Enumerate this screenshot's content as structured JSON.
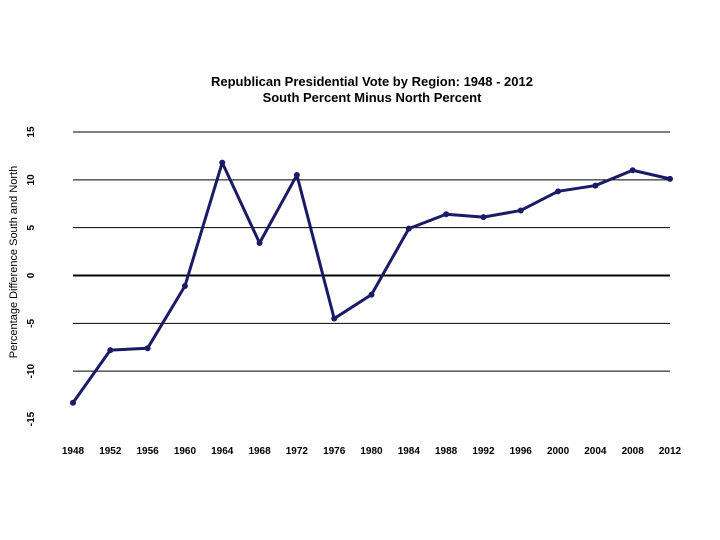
{
  "chart_data": {
    "type": "line",
    "title": "Republican Presidential Vote by Region: 1948 - 2012",
    "subtitle": "South Percent Minus North Percent",
    "xlabel": "",
    "ylabel": "Percentage Difference South and North",
    "x": [
      "1948",
      "1952",
      "1956",
      "1960",
      "1964",
      "1968",
      "1972",
      "1976",
      "1980",
      "1984",
      "1988",
      "1992",
      "1996",
      "2000",
      "2004",
      "2008",
      "2012"
    ],
    "values": [
      -13.3,
      -7.8,
      -7.6,
      -1.1,
      11.8,
      3.4,
      10.5,
      -4.5,
      -2.0,
      4.9,
      6.4,
      6.1,
      6.8,
      8.8,
      9.4,
      11.0,
      10.1
    ],
    "ylim": [
      -15,
      15
    ],
    "yticks": [
      "-15",
      "-10",
      "-5",
      "0",
      "5",
      "10",
      "15"
    ],
    "gridlines": [
      -10,
      -5,
      0,
      5,
      10,
      15
    ],
    "grid": true,
    "legend": "none",
    "line_color": "#1a1a66"
  }
}
